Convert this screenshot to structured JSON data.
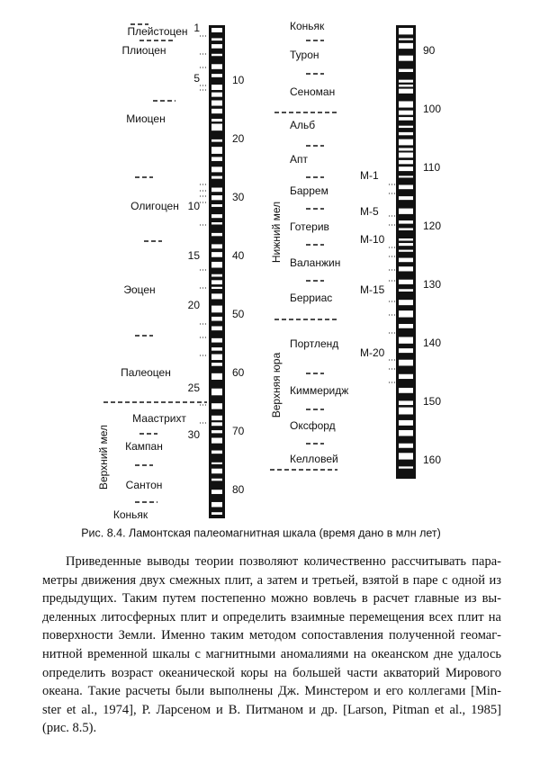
{
  "figure": {
    "left_column": {
      "anomalies": [
        "1",
        "5",
        "10",
        "15",
        "20",
        "25",
        "30"
      ],
      "ages": [
        "10",
        "20",
        "30",
        "40",
        "50",
        "60",
        "70",
        "80"
      ],
      "epochs": [
        "Плейстоцен",
        "Плиоцен",
        "Миоцен",
        "Олигоцен",
        "Эоцен",
        "Палеоцен",
        "Маастрихт",
        "Кампан",
        "Сантон",
        "Коньяк"
      ],
      "group": "Верхний мел"
    },
    "middle_column": {
      "stages": [
        "Коньяк",
        "Турон",
        "Сеноман",
        "Альб",
        "Апт",
        "Баррем",
        "Готерив",
        "Валанжин",
        "Берриас",
        "Портленд",
        "Киммеридж",
        "Оксфорд",
        "Келловей"
      ],
      "groups": [
        "Нижний мел",
        "Верхняя юра"
      ]
    },
    "right_column": {
      "ages": [
        "90",
        "100",
        "110",
        "120",
        "130",
        "140",
        "150",
        "160"
      ],
      "anomalies": [
        "М-1",
        "М-5",
        "М-10",
        "М-15",
        "М-20"
      ]
    },
    "caption": "Рис. 8.4. Ламонтская палеомагнитная шкала (время дано в млн лет)"
  },
  "body": {
    "lines": [
      "Приведенные выводы теории позволяют количественно рассчитывать пара-",
      "метры движения двух смежных плит, а затем и третьей, взятой в паре с одной из",
      "предыдущих. Таким путем постепенно можно вовлечь в расчет главные из вы-",
      "деленных литосферных плит и определить взаимные перемещения всех плит на",
      "поверхности Земли. Именно таким методом сопоставления полученной геомаг-",
      "нитной временной шкалы с магнитными аномалиями на океанском дне удалось",
      "определить возраст океанической коры на большей части акваторий Мирового",
      "океана. Такие расчеты были выполнены Дж. Минстером и его коллегами [Min-",
      "ster et al., 1974], Р. Ларсеном и В. Питманом и др. [Larson, Pitman et al., 1985]",
      "(рис. 8.5)."
    ]
  }
}
